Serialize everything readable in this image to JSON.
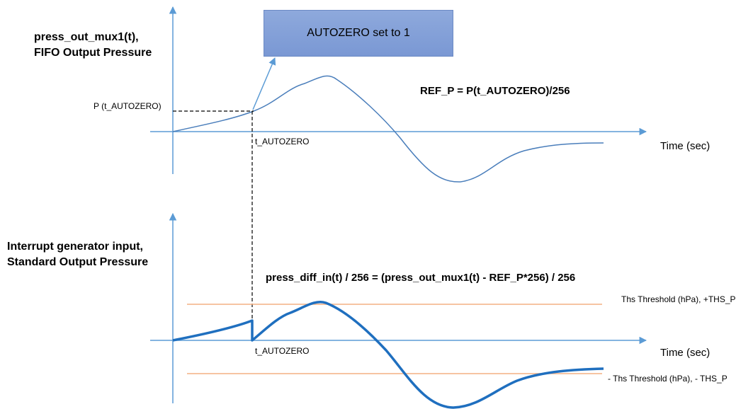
{
  "top_chart": {
    "ylabel_line1": "press_out_mux1(t),",
    "ylabel_line2": "FIFO Output Pressure",
    "xlabel": "Time (sec)",
    "p_marker": "P (t_AUTOZERO)",
    "t_marker": "t_AUTOZERO",
    "ref_formula": "REF_P = P(t_AUTOZERO)/256",
    "callout": "AUTOZERO set to 1"
  },
  "bottom_chart": {
    "ylabel_line1": "Interrupt generator input,",
    "ylabel_line2": "Standard Output Pressure",
    "xlabel": "Time (sec)",
    "formula": "press_diff_in(t) / 256 = (press_out_mux1(t)  - REF_P*256) / 256",
    "t_marker": "t_AUTOZERO",
    "pos_threshold": "Ths Threshold (hPa), +THS_P",
    "neg_threshold": "- Ths Threshold (hPa), - THS_P"
  },
  "colors": {
    "axis": "#5b9bd5",
    "curve": "#4a7ebb",
    "curve_bold": "#1f6fbf",
    "threshold": "#f4b183",
    "callout_fill": "#8faadc"
  }
}
